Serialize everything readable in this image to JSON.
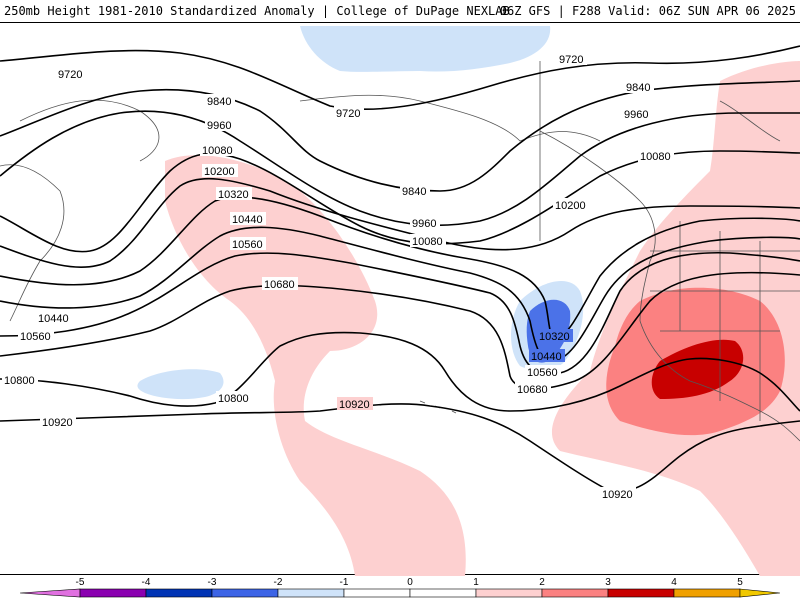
{
  "header": {
    "title_left": "250mb Height 1981-2010 Standardized Anomaly | College of DuPage NEXLAB",
    "title_right": "06Z GFS | F288 Valid: 06Z SUN APR 06 2025"
  },
  "colors": {
    "pos1": "#fdd0d0",
    "pos2": "#fb8181",
    "pos3": "#fc5252",
    "pos4": "#c80000",
    "neg1": "#cfe3f9",
    "neg2": "#4b72e8",
    "contour": "#000000",
    "coast": "#555555"
  },
  "contour_labels": [
    "9720",
    "9720",
    "9720",
    "9840",
    "9840",
    "9840",
    "9960",
    "9960",
    "9960",
    "10080",
    "10080",
    "10080",
    "10200",
    "10200",
    "10320",
    "10320",
    "10440",
    "10440",
    "10440",
    "10560",
    "10560",
    "10560",
    "10680",
    "10680",
    "10800",
    "10800",
    "10920",
    "10920",
    "10920"
  ],
  "colorbar": {
    "ticks": [
      "-5",
      "-4",
      "-3",
      "-2",
      "-1",
      "0",
      "1",
      "2",
      "3",
      "4",
      "5"
    ],
    "colors": [
      "#e070e0",
      "#8a00b0",
      "#0033b4",
      "#3c64e6",
      "#cfe3f9",
      "#ffffff",
      "#ffffff",
      "#fdd0d0",
      "#fb8181",
      "#c80000",
      "#f0a000",
      "#f0c800"
    ]
  }
}
